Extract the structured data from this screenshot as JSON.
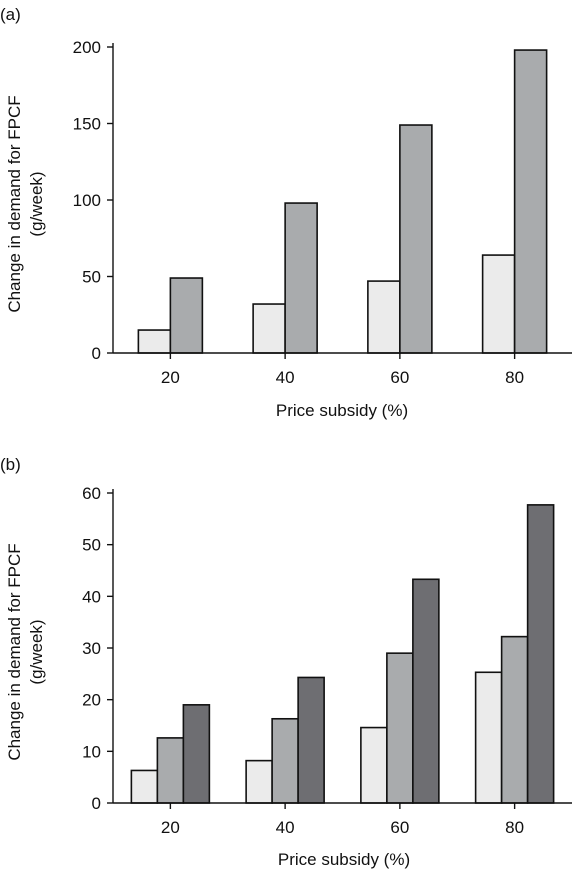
{
  "chart_data": [
    {
      "type": "bar",
      "panel_label": "(a)",
      "categories": [
        "20",
        "40",
        "60",
        "80"
      ],
      "series": [
        {
          "values": [
            15,
            32,
            47,
            64
          ],
          "color": "#ebebeb"
        },
        {
          "values": [
            49,
            98,
            149,
            198
          ],
          "color": "#a9abad"
        }
      ],
      "xlabel": "Price subsidy (%)",
      "ylabel_line1": "Change in demand for FPCF",
      "ylabel_line2": "(g/week)",
      "ylim": [
        0,
        200
      ],
      "yticks": [
        "0",
        "50",
        "100",
        "150",
        "200"
      ],
      "grid": false
    },
    {
      "type": "bar",
      "panel_label": "(b)",
      "categories": [
        "20",
        "40",
        "60",
        "80"
      ],
      "series": [
        {
          "values": [
            6.3,
            8.2,
            14.6,
            25.3
          ],
          "color": "#ebebeb"
        },
        {
          "values": [
            12.6,
            16.3,
            29.0,
            32.2
          ],
          "color": "#a9abad"
        },
        {
          "values": [
            19.0,
            24.3,
            43.3,
            57.7
          ],
          "color": "#6e6e72"
        }
      ],
      "xlabel": "Price subsidy (%)",
      "ylabel_line1": "Change in demand for FPCF",
      "ylabel_line2": "(g/week)",
      "ylim": [
        0,
        60
      ],
      "yticks": [
        "0",
        "10",
        "20",
        "30",
        "40",
        "50",
        "60"
      ],
      "grid": false
    }
  ]
}
